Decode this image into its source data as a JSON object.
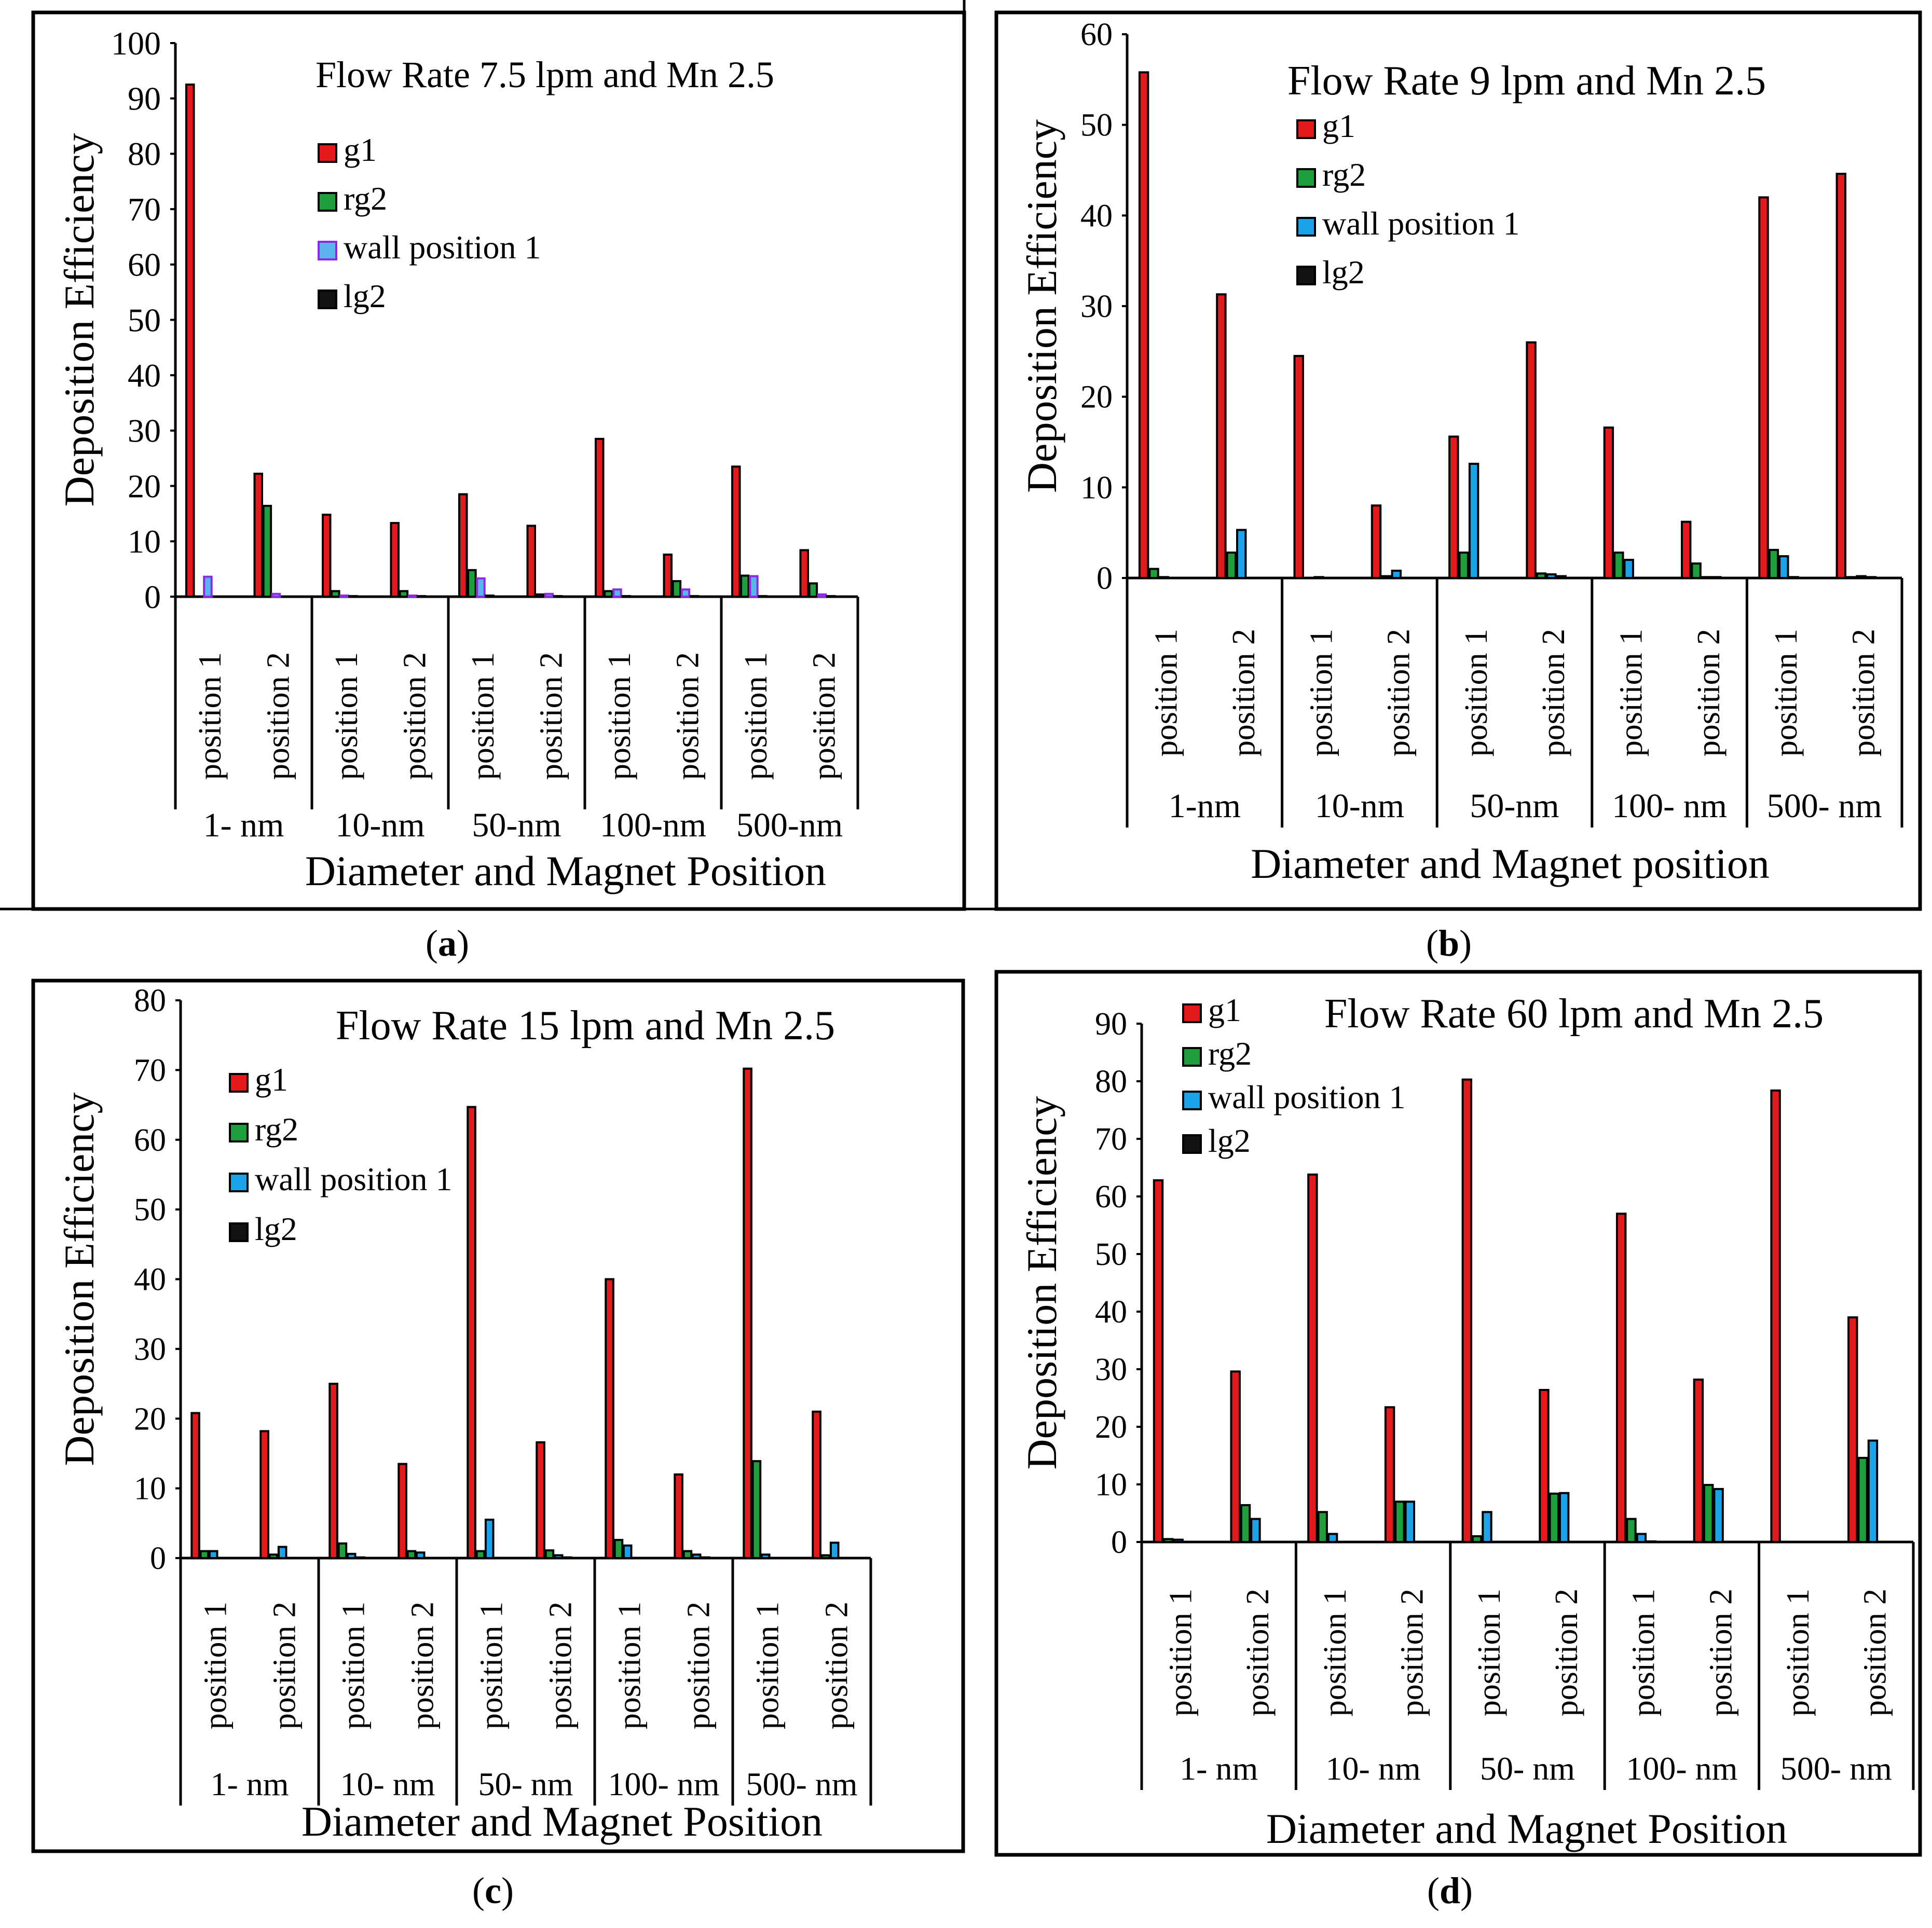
{
  "series_names": [
    "g1",
    "rg2",
    "wall position 1",
    "lg2"
  ],
  "colors": {
    "g1": "#e31a1c",
    "rg2": "#1e9e3c",
    "wall_pos_blue": "#1aa3e8",
    "wall_pos_violet": "#5ab4ee",
    "wall_pos_violet_border": "#8a2be2",
    "lg2": "#111111"
  },
  "chart_data": [
    {
      "id": "a",
      "type": "bar",
      "title": "Flow Rate 7.5 lpm and Mn 2.5",
      "caption": "a",
      "xlabel": "Diameter and Magnet Position",
      "ylabel": "Deposition Efficiency",
      "ylim": [
        0,
        100
      ],
      "yticks": [
        "0",
        "10",
        "20",
        "30",
        "40",
        "50",
        "60",
        "70",
        "80",
        "90",
        "100"
      ],
      "groups": [
        "1- nm",
        "10-nm",
        "50-nm",
        "100-nm",
        "500-nm"
      ],
      "subcategories": [
        "position 1",
        "position 2"
      ],
      "legend": "top-center",
      "series": [
        {
          "name": "g1",
          "values": [
            92.5,
            22.2,
            14.8,
            13.3,
            18.5,
            12.8,
            28.5,
            7.6,
            23.5,
            8.4
          ]
        },
        {
          "name": "rg2",
          "values": [
            0.0,
            16.4,
            1.0,
            1.0,
            4.8,
            0.4,
            1.0,
            2.8,
            3.8,
            2.4
          ]
        },
        {
          "name": "wall position 1",
          "values": [
            3.6,
            0.5,
            0.2,
            0.2,
            3.3,
            0.5,
            1.3,
            1.3,
            3.7,
            0.4
          ]
        },
        {
          "name": "lg2",
          "values": [
            0.0,
            0.0,
            0.1,
            0.1,
            0.2,
            0.1,
            0.1,
            0.1,
            0.1,
            0.1
          ]
        }
      ]
    },
    {
      "id": "b",
      "type": "bar",
      "title": "Flow Rate 9 lpm and Mn 2.5",
      "caption": "b",
      "xlabel": "Diameter and Magnet position",
      "ylabel": "Deposition Efficiency",
      "ylim": [
        0,
        60
      ],
      "yticks": [
        "0",
        "10",
        "20",
        "30",
        "40",
        "50",
        "60"
      ],
      "groups": [
        "1-nm",
        "10-nm",
        "50-nm",
        "100- nm",
        "500- nm"
      ],
      "subcategories": [
        "position 1",
        "position 2"
      ],
      "legend": "top-left",
      "series": [
        {
          "name": "g1",
          "values": [
            55.8,
            31.3,
            24.5,
            8.0,
            15.6,
            26.0,
            16.6,
            6.2,
            42.0,
            44.6
          ]
        },
        {
          "name": "rg2",
          "values": [
            1.0,
            2.8,
            0.0,
            0.2,
            2.8,
            0.5,
            2.8,
            1.6,
            3.1,
            0.1
          ]
        },
        {
          "name": "wall position 1",
          "values": [
            0.1,
            5.3,
            0.1,
            0.8,
            12.6,
            0.4,
            2.0,
            0.1,
            2.4,
            0.2
          ]
        },
        {
          "name": "lg2",
          "values": [
            0.0,
            0.0,
            0.0,
            0.0,
            0.0,
            0.2,
            0.0,
            0.1,
            0.1,
            0.1
          ]
        }
      ]
    },
    {
      "id": "c",
      "type": "bar",
      "title": "Flow Rate 15 lpm and Mn 2.5",
      "caption": "c",
      "xlabel": "Diameter and Magnet Position",
      "ylabel": "Deposition Efficiency",
      "ylim": [
        0,
        80
      ],
      "yticks": [
        "0",
        "10",
        "20",
        "30",
        "40",
        "50",
        "60",
        "70",
        "80"
      ],
      "groups": [
        "1- nm",
        "10- nm",
        "50- nm",
        "100- nm",
        "500- nm"
      ],
      "subcategories": [
        "position 1",
        "position 2"
      ],
      "legend": "left",
      "series": [
        {
          "name": "g1",
          "values": [
            20.8,
            18.2,
            25.0,
            13.5,
            64.7,
            16.6,
            40.0,
            12.0,
            70.2,
            21.0
          ]
        },
        {
          "name": "rg2",
          "values": [
            1.0,
            0.5,
            2.1,
            1.0,
            1.0,
            1.1,
            2.6,
            1.0,
            13.9,
            0.4
          ]
        },
        {
          "name": "wall position 1",
          "values": [
            1.0,
            1.6,
            0.6,
            0.8,
            5.5,
            0.4,
            1.8,
            0.5,
            0.5,
            2.2
          ]
        },
        {
          "name": "lg2",
          "values": [
            0.0,
            0.0,
            0.1,
            0.0,
            0.0,
            0.1,
            0.0,
            0.1,
            0.0,
            0.0
          ]
        }
      ]
    },
    {
      "id": "d",
      "type": "bar",
      "title": "Flow Rate 60 lpm and Mn 2.5",
      "caption": "d",
      "xlabel": "Diameter and Magnet Position",
      "ylabel": "Deposition Efficiency",
      "ylim": [
        0,
        90
      ],
      "yticks": [
        "0",
        "10",
        "20",
        "30",
        "40",
        "50",
        "60",
        "70",
        "80",
        "90"
      ],
      "groups": [
        "1- nm",
        "10- nm",
        "50- nm",
        "100- nm",
        "500- nm"
      ],
      "subcategories": [
        "position 1",
        "position 2"
      ],
      "legend": "top-left",
      "series": [
        {
          "name": "g1",
          "values": [
            62.8,
            29.6,
            63.8,
            23.4,
            80.3,
            26.4,
            57.0,
            28.2,
            78.4,
            39.0
          ]
        },
        {
          "name": "rg2",
          "values": [
            0.5,
            6.4,
            5.2,
            7.0,
            1.0,
            8.4,
            4.0,
            9.9,
            0.0,
            14.6
          ]
        },
        {
          "name": "wall position 1",
          "values": [
            0.4,
            4.0,
            1.4,
            7.0,
            5.2,
            8.5,
            1.4,
            9.2,
            0.0,
            17.6
          ]
        },
        {
          "name": "lg2",
          "values": [
            0.0,
            0.0,
            0.0,
            0.0,
            0.0,
            0.0,
            0.1,
            0.0,
            0.0,
            0.0
          ]
        }
      ]
    }
  ]
}
